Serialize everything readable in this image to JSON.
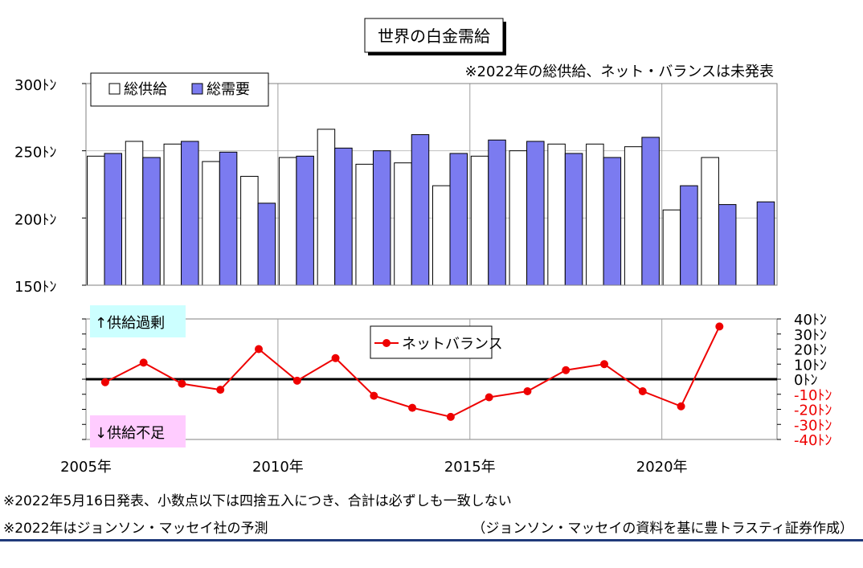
{
  "title": "世界の白金需給",
  "note_unpublished": "※2022年の総供給、ネット・バランスは未発表",
  "footnotes": {
    "line1": "※2022年5月16日発表、小数点以下は四捨五入につき、合計は必ずしも一致しない",
    "line2": "※2022年はジョンソン・マッセイ社の予測",
    "source": "（ジョンソン・マッセイの資料を基に豊トラスティ証券作成）"
  },
  "labels": {
    "supply_surplus": "↑供給過剰",
    "supply_shortage": "↓供給不足"
  },
  "colors": {
    "supply": "#ffffff",
    "demand": "#7b7bf0",
    "net_balance": "#ee0000",
    "surplus_bg": "#ccffff",
    "shortage_bg": "#ffccff",
    "negative_tick": "#ee0000"
  },
  "chart_data": [
    {
      "type": "bar",
      "x": [
        2005,
        2006,
        2007,
        2008,
        2009,
        2010,
        2011,
        2012,
        2013,
        2014,
        2015,
        2016,
        2017,
        2018,
        2019,
        2020,
        2021,
        2022
      ],
      "series": [
        {
          "name": "総供給",
          "values": [
            246,
            257,
            255,
            242,
            231,
            245,
            266,
            240,
            241,
            224,
            246,
            250,
            255,
            255,
            253,
            206,
            245,
            null
          ]
        },
        {
          "name": "総需要",
          "values": [
            248,
            245,
            257,
            249,
            211,
            246,
            252,
            250,
            262,
            248,
            258,
            257,
            248,
            245,
            260,
            224,
            210,
            212
          ]
        }
      ],
      "ylim": [
        150,
        300
      ],
      "y_ticks": [
        "300ﾄﾝ",
        "250ﾄﾝ",
        "200ﾄﾝ",
        "150ﾄﾝ"
      ],
      "x_ticks": [
        "2005年",
        "2010年",
        "2015年",
        "2020年"
      ],
      "legend": "top-left",
      "grid": true
    },
    {
      "type": "line",
      "x": [
        2005,
        2006,
        2007,
        2008,
        2009,
        2010,
        2011,
        2012,
        2013,
        2014,
        2015,
        2016,
        2017,
        2018,
        2019,
        2020,
        2021
      ],
      "series": [
        {
          "name": "ネットバランス",
          "values": [
            -2,
            11,
            -3,
            -7,
            20,
            -1,
            14,
            -11,
            -19,
            -25,
            -12,
            -8,
            6,
            10,
            -8,
            -18,
            35
          ]
        }
      ],
      "ylim": [
        -40,
        40
      ],
      "y_ticks": [
        "40ﾄﾝ",
        "30ﾄﾝ",
        "20ﾄﾝ",
        "10ﾄﾝ",
        "0ﾄﾝ",
        "-10ﾄﾝ",
        "-20ﾄﾝ",
        "-30ﾄﾝ",
        "-40ﾄﾝ"
      ],
      "legend": "top-center",
      "grid": true
    }
  ]
}
